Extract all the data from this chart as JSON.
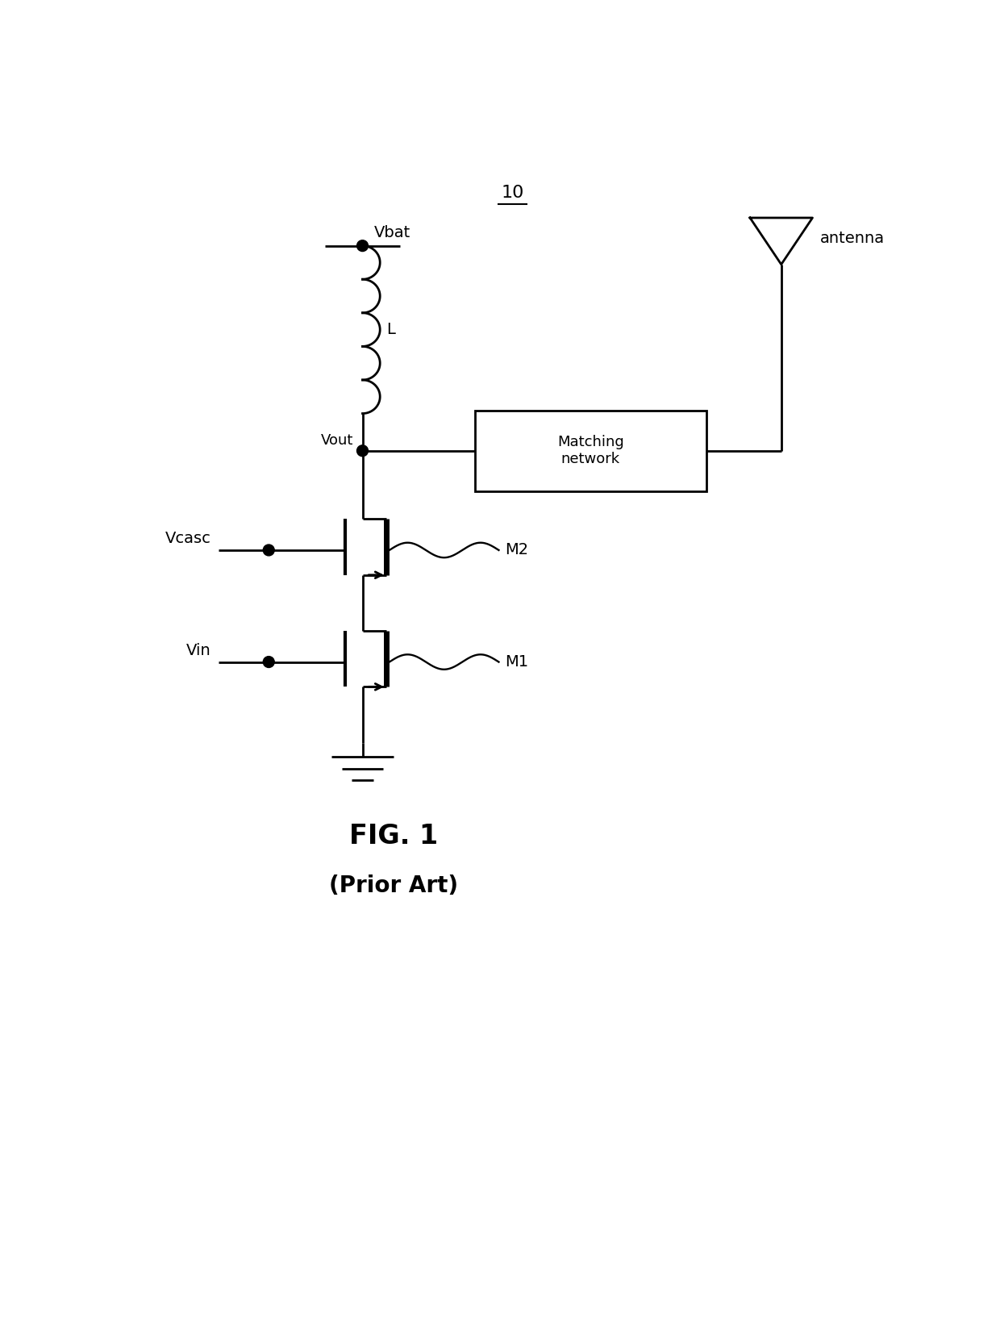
{
  "title": "10",
  "fig_label": "FIG. 1",
  "fig_sublabel": "(Prior Art)",
  "background_color": "#ffffff",
  "line_color": "#000000",
  "line_width": 2.0,
  "labels": {
    "vbat": "Vbat",
    "vout": "Vout",
    "vcasc": "Vcasc",
    "vin": "Vin",
    "L": "L",
    "M1": "M1",
    "M2": "M2",
    "antenna": "antenna",
    "matching": "Matching\nnetwork"
  },
  "figsize": [
    12.4,
    16.66
  ],
  "dpi": 100
}
